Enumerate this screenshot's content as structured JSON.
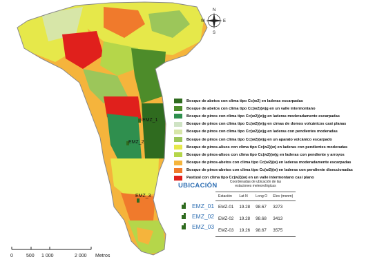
{
  "legend": [
    {
      "label": "Bosque de abetos con clima tipo Cc(w2) en laderas escarpadas",
      "color": "#2f6b1f"
    },
    {
      "label": "Bosque de abetos con clima tipo Cc(w2)(w)g en un valle intermontano",
      "color": "#4d8c2a"
    },
    {
      "label": "Bosque de pinos con clima tipo Cc(w2)(w)g en laderas moderadamente escarpadas",
      "color": "#2f8f4e"
    },
    {
      "label": "Bosque de pinos con clima tipo Cc(w2)(w)g en cimas de domos volcánicos casi planas",
      "color": "#cfe3c4"
    },
    {
      "label": "Bosque de pinos con clima tipo Cc(w2)(w)g en laderas con pendientes moderadas",
      "color": "#d7e6a8"
    },
    {
      "label": "Bosque de pinos con clima tipo Cc(w2)(w)g en un aparato volcánico escarpado",
      "color": "#9cc65a"
    },
    {
      "label": "Bosque de pinos-alisos con clima tipo Cc(w2)(w) en laderas con pendientes moderadas",
      "color": "#e6e84a"
    },
    {
      "label": "Bosque de pinos-alisos con clima tipo Cc(w2)(w)g en laderas con pendiente y arroyos",
      "color": "#b5d64a"
    },
    {
      "label": "Bosque de pinos-abetos con clima tipo Cc(w2)(w) en laderas moderadamente escarpadas",
      "color": "#f5b43c"
    },
    {
      "label": "Bosque de pinos-abetos con clima tipo Cc(w2)(w) en laderas con pendiente diseccionadas",
      "color": "#f07a2c"
    },
    {
      "label": "Pastizal con clima tipo Cc(w2)(w) en un valle intermontano casi plano",
      "color": "#e0201c"
    }
  ],
  "ubicacion": {
    "title": "UBICACIÓN",
    "table_title": "Coordenadas de ubicación de las estaciones meteorológicas",
    "headers": [
      "Estación",
      "Lat N",
      "Long O",
      "Elev (msnm)"
    ],
    "rows": [
      [
        "EMZ-01",
        "19.28",
        "98.67",
        "3273"
      ],
      [
        "EMZ-02",
        "19.28",
        "98.68",
        "3413"
      ],
      [
        "EMZ-03",
        "19.26",
        "98.67",
        "3575"
      ]
    ],
    "icon_labels": [
      "EMZ_01",
      "EMZ_02",
      "EMZ_03"
    ]
  },
  "map_labels": {
    "station_1": "EMZ_1",
    "station_2": "EMZ_2",
    "station_3": "EMZ_3"
  },
  "compass": {
    "n": "N",
    "s": "S",
    "e": "E",
    "w": "W"
  },
  "scale": {
    "ticks": [
      "0",
      "500",
      "1 000",
      "2 000"
    ],
    "unit": "Metros"
  }
}
